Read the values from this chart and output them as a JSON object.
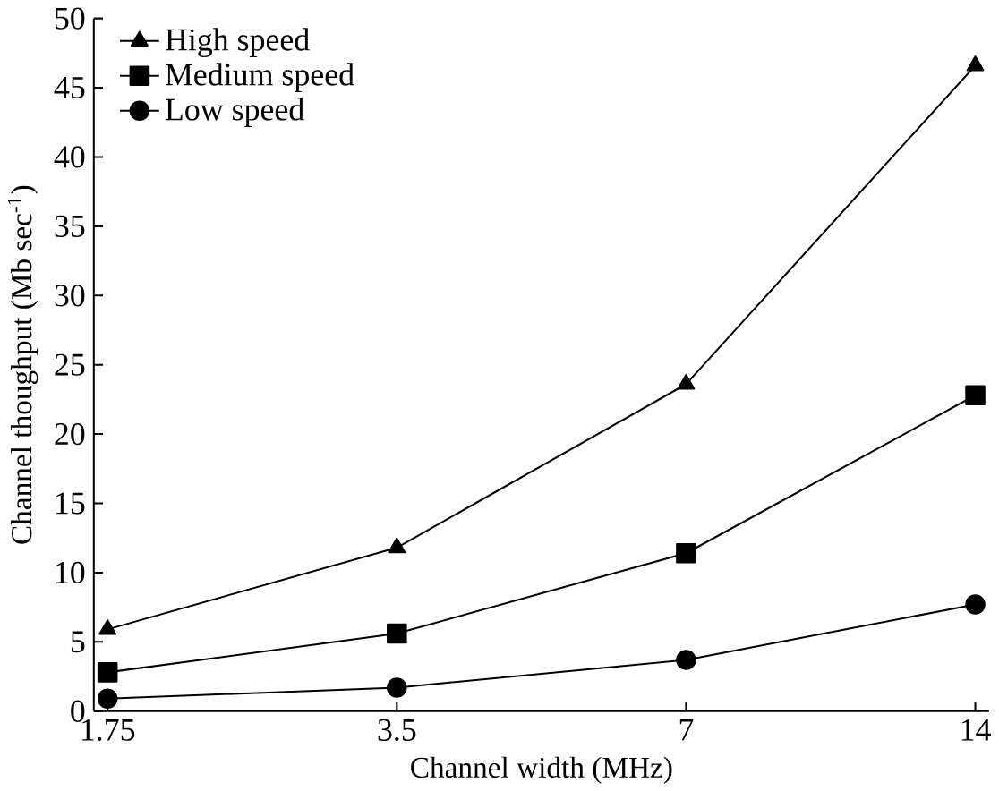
{
  "chart_data": {
    "type": "line",
    "xlabel": "Channel width (MHz)",
    "ylabel": "Channel thoughput (Mb sec$^{-1}$)",
    "categories": [
      "1.75",
      "3.5",
      "7",
      "14"
    ],
    "series": [
      {
        "name": "High speed",
        "color": "#000000",
        "marker": "triangle",
        "values": [
          5.9,
          11.8,
          23.6,
          46.6
        ]
      },
      {
        "name": "Medium speed",
        "color": "#000000",
        "marker": "square",
        "values": [
          2.8,
          5.6,
          11.4,
          22.8
        ]
      },
      {
        "name": "Low speed",
        "color": "#000000",
        "marker": "circle",
        "values": [
          0.9,
          1.7,
          3.7,
          7.7
        ]
      }
    ],
    "ylim": [
      0,
      50
    ],
    "yticks": [
      0,
      5,
      10,
      15,
      20,
      25,
      30,
      35,
      40,
      45,
      50
    ],
    "legend": "top left",
    "grid": false,
    "line_style": "solid"
  }
}
